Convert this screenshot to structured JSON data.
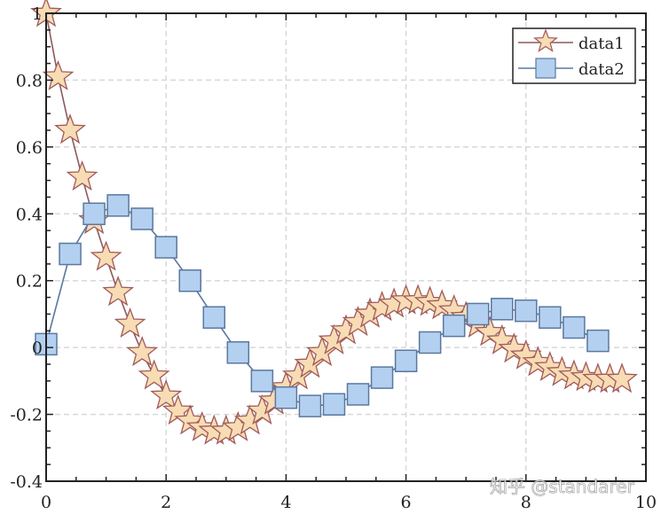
{
  "chart_data": {
    "type": "line",
    "title": "",
    "xlabel": "",
    "ylabel": "",
    "xlim": [
      0,
      10
    ],
    "ylim": [
      -0.4,
      1
    ],
    "xticks": [
      0,
      2,
      4,
      6,
      8,
      10
    ],
    "yticks": [
      -0.4,
      -0.2,
      0,
      0.2,
      0.4,
      0.6,
      0.8,
      1
    ],
    "xtick_labels": [
      "0",
      "2",
      "4",
      "6",
      "8",
      "10"
    ],
    "ytick_labels": [
      "-0.4",
      "-0.2",
      "0",
      "0.2",
      "0.4",
      "0.6",
      "0.8",
      "1"
    ],
    "grid": true,
    "legend_position": "upper right",
    "series": [
      {
        "name": "data1",
        "marker": "star",
        "line_color": "#8b5a5a",
        "marker_fill": "#f7dcb4",
        "marker_edge": "#a05a5a",
        "x": [
          0,
          0.2,
          0.4,
          0.6,
          0.8,
          1.0,
          1.2,
          1.4,
          1.6,
          1.8,
          2.0,
          2.2,
          2.4,
          2.6,
          2.8,
          3.0,
          3.2,
          3.4,
          3.6,
          3.8,
          4.0,
          4.2,
          4.4,
          4.6,
          4.8,
          5.0,
          5.2,
          5.4,
          5.6,
          5.8,
          6.0,
          6.2,
          6.4,
          6.6,
          6.8,
          7.0,
          7.2,
          7.4,
          7.6,
          7.8,
          8.0,
          8.2,
          8.4,
          8.6,
          8.8,
          9.0,
          9.2,
          9.4,
          9.6
        ],
        "values": [
          1,
          0.81,
          0.65,
          0.51,
          0.38,
          0.27,
          0.165,
          0.07,
          -0.015,
          -0.085,
          -0.145,
          -0.19,
          -0.22,
          -0.24,
          -0.25,
          -0.25,
          -0.24,
          -0.22,
          -0.19,
          -0.16,
          -0.12,
          -0.085,
          -0.05,
          -0.015,
          0.02,
          0.05,
          0.075,
          0.1,
          0.12,
          0.13,
          0.14,
          0.14,
          0.135,
          0.125,
          0.11,
          0.09,
          0.07,
          0.045,
          0.02,
          -0.005,
          -0.025,
          -0.045,
          -0.06,
          -0.075,
          -0.085,
          -0.09,
          -0.095,
          -0.095,
          -0.095
        ]
      },
      {
        "name": "data2",
        "marker": "square",
        "line_color": "#5a78a0",
        "marker_fill": "#b4d0f0",
        "marker_edge": "#5a78a0",
        "x": [
          0,
          0.4,
          0.8,
          1.2,
          1.6,
          2.0,
          2.4,
          2.8,
          3.2,
          3.6,
          4.0,
          4.4,
          4.8,
          5.2,
          5.6,
          6.0,
          6.4,
          6.8,
          7.2,
          7.6,
          8.0,
          8.4,
          8.8,
          9.2
        ],
        "values": [
          0.01,
          0.28,
          0.4,
          0.425,
          0.385,
          0.3,
          0.2,
          0.09,
          -0.015,
          -0.1,
          -0.15,
          -0.175,
          -0.17,
          -0.14,
          -0.09,
          -0.04,
          0.015,
          0.065,
          0.1,
          0.115,
          0.11,
          0.09,
          0.06,
          0.02
        ]
      }
    ]
  },
  "legend": {
    "items": [
      {
        "label": "data1"
      },
      {
        "label": "data2"
      }
    ]
  },
  "watermark": {
    "text": "知乎 @standarer"
  }
}
